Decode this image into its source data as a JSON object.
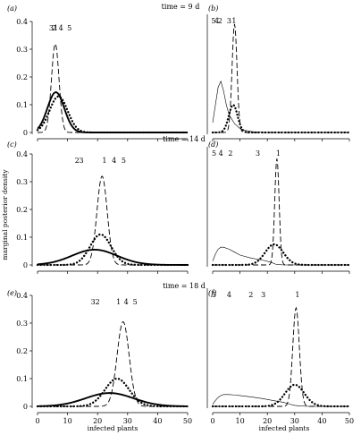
{
  "figure": {
    "time_labels": [
      "time = 9 d",
      "time = 14 d",
      "time = 18 d"
    ],
    "ylabel": "marginal posterior density",
    "xlabel": "infected plants"
  },
  "chart_data": [
    {
      "type": "line",
      "panel": "(a)",
      "time": "time = 9 d",
      "xlim": [
        0,
        50
      ],
      "ylim": [
        0,
        0.4
      ],
      "xticks": [],
      "yticks": [
        0,
        0.1,
        0.2,
        0.3,
        0.4
      ],
      "peak_labels": [
        {
          "text": "3",
          "x": 4.6
        },
        {
          "text": "2",
          "x": 5.6
        },
        {
          "text": "1",
          "x": 6.1
        },
        {
          "text": "4",
          "x": 7.8
        },
        {
          "text": "5",
          "x": 10.6
        }
      ],
      "series": [
        {
          "style": "dashed",
          "curve": "gaussian",
          "mu": 5.9,
          "sigma": 1.25,
          "peak": 0.32
        },
        {
          "style": "dotted",
          "curve": "gaussian",
          "mu": 7.0,
          "sigma": 3.0,
          "peak": 0.13
        },
        {
          "style": "thick",
          "curve": "gaussian",
          "mu": 6.1,
          "sigma": 2.8,
          "peak": 0.145
        }
      ]
    },
    {
      "type": "line",
      "panel": "(b)",
      "xlim": [
        0,
        50
      ],
      "ylim": [
        0,
        0.6
      ],
      "xticks": [],
      "yticks": [],
      "peak_labels": [
        {
          "text": "5",
          "x": 0.3
        },
        {
          "text": "4",
          "x": 1.5
        },
        {
          "text": "2",
          "x": 2.7
        },
        {
          "text": "3",
          "x": 6.0
        },
        {
          "text": "1",
          "x": 7.8
        }
      ],
      "series": [
        {
          "style": "thin",
          "curve": "skewed",
          "x": [
            0,
            1,
            2,
            3,
            4,
            5,
            6,
            8,
            10,
            12,
            15,
            20
          ],
          "y": [
            0.05,
            0.14,
            0.23,
            0.26,
            0.21,
            0.14,
            0.09,
            0.045,
            0.02,
            0.01,
            0.003,
            0
          ]
        },
        {
          "style": "dashed",
          "curve": "gaussian",
          "mu": 8.0,
          "sigma": 0.9,
          "peak": 0.55
        },
        {
          "style": "dotted",
          "curve": "gaussian",
          "mu": 7.5,
          "sigma": 1.6,
          "peak": 0.14
        }
      ]
    },
    {
      "type": "line",
      "panel": "(c)",
      "time": "time = 14 d",
      "xlim": [
        0,
        50
      ],
      "ylim": [
        0,
        0.4
      ],
      "xticks": [],
      "yticks": [
        0,
        0.1,
        0.2,
        0.3,
        0.4
      ],
      "peak_labels": [
        {
          "text": "2",
          "x": 13.2
        },
        {
          "text": "3",
          "x": 14.6
        },
        {
          "text": "1",
          "x": 22.3
        },
        {
          "text": "4",
          "x": 25.5
        },
        {
          "text": "5",
          "x": 28.7
        }
      ],
      "series": [
        {
          "style": "dashed",
          "curve": "gaussian",
          "mu": 21.5,
          "sigma": 1.7,
          "peak": 0.32
        },
        {
          "style": "dotted",
          "curve": "gaussian",
          "mu": 21.0,
          "sigma": 3.5,
          "peak": 0.11
        },
        {
          "style": "thick",
          "curve": "gaussian",
          "mu": 19.0,
          "sigma": 7.5,
          "peak": 0.055
        }
      ]
    },
    {
      "type": "line",
      "panel": "(d)",
      "xlim": [
        0,
        50
      ],
      "ylim": [
        0,
        0.6
      ],
      "xticks": [],
      "yticks": [],
      "peak_labels": [
        {
          "text": "5",
          "x": 0.5
        },
        {
          "text": "4",
          "x": 3.0
        },
        {
          "text": "2",
          "x": 6.5
        },
        {
          "text": "3",
          "x": 16.5
        },
        {
          "text": "1",
          "x": 24.0
        }
      ],
      "series": [
        {
          "style": "thin",
          "curve": "skewed",
          "x": [
            0,
            1,
            2,
            3,
            4,
            6,
            8,
            10,
            14,
            18,
            21,
            22,
            23,
            24,
            26,
            30
          ],
          "y": [
            0.02,
            0.055,
            0.08,
            0.09,
            0.09,
            0.08,
            0.065,
            0.05,
            0.035,
            0.025,
            0.015,
            0.01,
            0.004,
            0.002,
            0,
            0
          ]
        },
        {
          "style": "dashed",
          "curve": "gaussian",
          "mu": 23.5,
          "sigma": 0.8,
          "peak": 0.54
        },
        {
          "style": "dotted",
          "curve": "gaussian",
          "mu": 22.5,
          "sigma": 3.3,
          "peak": 0.105
        }
      ]
    },
    {
      "type": "line",
      "panel": "(e)",
      "time": "time = 18 d",
      "xlim": [
        0,
        50
      ],
      "ylim": [
        0,
        0.4
      ],
      "xticks": [
        0,
        10,
        20,
        30,
        40,
        50
      ],
      "yticks": [
        0,
        0.1,
        0.2,
        0.3,
        0.4
      ],
      "peak_labels": [
        {
          "text": "3",
          "x": 18.5
        },
        {
          "text": "2",
          "x": 20.0
        },
        {
          "text": "1",
          "x": 27.0
        },
        {
          "text": "4",
          "x": 29.5
        },
        {
          "text": "5",
          "x": 32.5
        }
      ],
      "series": [
        {
          "style": "dashed",
          "curve": "gaussian",
          "mu": 28.5,
          "sigma": 2.0,
          "peak": 0.305
        },
        {
          "style": "dotted",
          "curve": "gaussian",
          "mu": 26.5,
          "sigma": 4.0,
          "peak": 0.1
        },
        {
          "style": "thick",
          "curve": "gaussian",
          "mu": 24.0,
          "sigma": 8.0,
          "peak": 0.048
        }
      ]
    },
    {
      "type": "line",
      "panel": "(f)",
      "xlim": [
        0,
        50
      ],
      "ylim": [
        0,
        0.6
      ],
      "xticks": [
        0,
        10,
        20,
        30,
        40,
        50
      ],
      "yticks": [],
      "peak_labels": [
        {
          "text": "5",
          "x": 0.5
        },
        {
          "text": "4",
          "x": 6.0
        },
        {
          "text": "2",
          "x": 14.0
        },
        {
          "text": "3",
          "x": 18.5
        },
        {
          "text": "1",
          "x": 31.0
        }
      ],
      "series": [
        {
          "style": "thin",
          "curve": "skewed",
          "x": [
            0,
            1,
            2,
            3,
            4,
            6,
            8,
            10,
            14,
            18,
            22,
            26,
            28,
            30,
            32,
            35
          ],
          "y": [
            0.01,
            0.03,
            0.045,
            0.055,
            0.06,
            0.06,
            0.058,
            0.055,
            0.048,
            0.04,
            0.03,
            0.02,
            0.012,
            0.005,
            0.002,
            0
          ]
        },
        {
          "style": "dashed",
          "curve": "gaussian",
          "mu": 30.5,
          "sigma": 1.2,
          "peak": 0.5
        },
        {
          "style": "dotted",
          "curve": "gaussian",
          "mu": 30.0,
          "sigma": 3.5,
          "peak": 0.11
        }
      ]
    }
  ]
}
